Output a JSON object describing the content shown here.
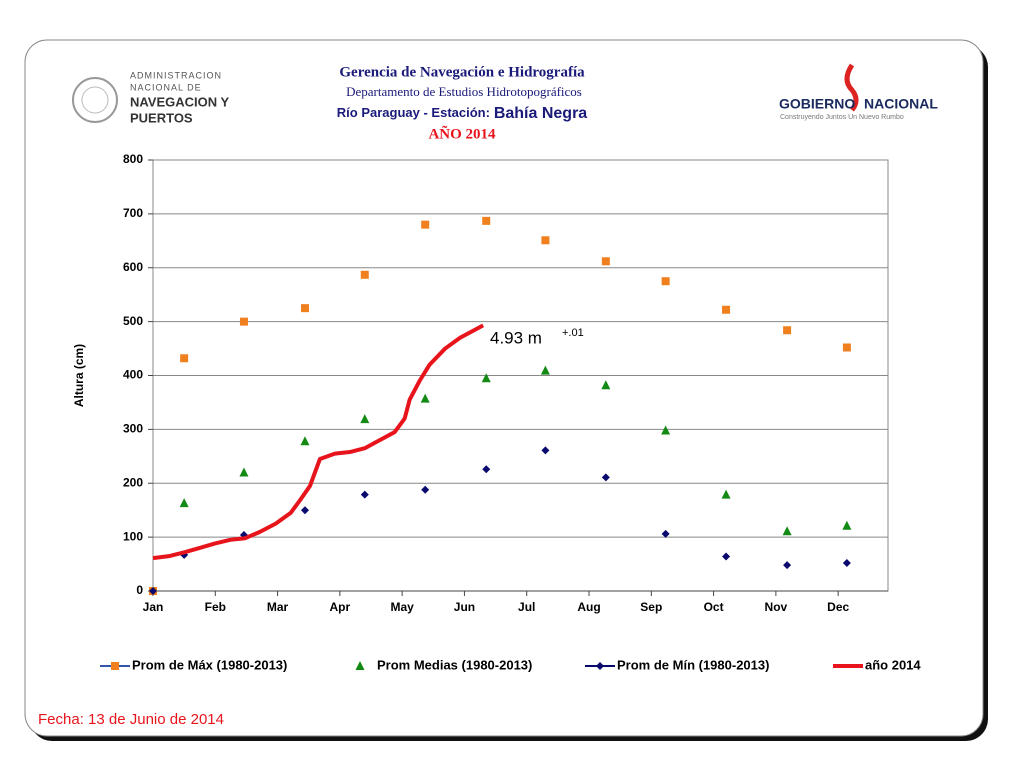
{
  "header": {
    "title": "Gerencia de Navegación e Hidrografía",
    "subtitle": "Departamento de Estudios Hidrotopográficos",
    "station_prefix": "Río Paraguay  -  Estación:",
    "station": "Bahía Negra",
    "year": "AÑO 2014"
  },
  "logos": {
    "left": [
      "ADMINISTRACION",
      "NACIONAL DE",
      "NAVEGACION Y",
      "PUERTOS"
    ],
    "right_a": "GOBIERNO",
    "right_b": "NACIONAL",
    "right_tagline": "Construyendo Juntos Un Nuevo Rumbo"
  },
  "footer": "Fecha:  13 de Junio de 2014",
  "chart_data": {
    "type": "line",
    "y_label": "Altura (cm)",
    "xlim": [
      0,
      11.8
    ],
    "xticks": [
      {
        "value": 0,
        "label": "Jan"
      },
      {
        "value": 1,
        "label": "Feb"
      },
      {
        "value": 2,
        "label": "Mar"
      },
      {
        "value": 3,
        "label": "Apr"
      },
      {
        "value": 4,
        "label": "May"
      },
      {
        "value": 5,
        "label": "Jun"
      },
      {
        "value": 6,
        "label": "Jul"
      },
      {
        "value": 7,
        "label": "Aug"
      },
      {
        "value": 8,
        "label": "Sep"
      },
      {
        "value": 9,
        "label": "Oct"
      },
      {
        "value": 10,
        "label": "Nov"
      },
      {
        "value": 11,
        "label": "Dec"
      }
    ],
    "ylim": [
      0,
      800
    ],
    "yticks": [
      0,
      100,
      200,
      300,
      400,
      500,
      600,
      700,
      800
    ],
    "grid": true,
    "series": [
      {
        "name": "Prom de Máx (1980-2013)",
        "color": "#f07f1e",
        "marker": "square",
        "x": [
          0,
          0.5,
          1.46,
          2.44,
          3.4,
          4.37,
          5.35,
          6.3,
          7.27,
          8.23,
          9.2,
          10.18,
          11.14
        ],
        "values": [
          0,
          432,
          500,
          525,
          587,
          680,
          687,
          651,
          612,
          575,
          522,
          484,
          452
        ]
      },
      {
        "name": "Prom Medias (1980-2013)",
        "color": "#138a13",
        "marker": "triangle",
        "x": [
          0.5,
          1.46,
          2.44,
          3.4,
          4.37,
          5.35,
          6.3,
          7.27,
          8.23,
          9.2,
          10.18,
          11.14
        ],
        "values": [
          163,
          220,
          278,
          319,
          357,
          395,
          409,
          382,
          298,
          179,
          111,
          121
        ]
      },
      {
        "name": "Prom de Mín   (1980-2013)",
        "color": "#0a0a6e",
        "marker": "diamond",
        "x": [
          0,
          0.5,
          1.46,
          2.44,
          3.4,
          4.37,
          5.35,
          6.3,
          7.27,
          8.23,
          9.2,
          10.18,
          11.14
        ],
        "values": [
          0,
          67,
          104,
          150,
          179,
          188,
          226,
          261,
          211,
          106,
          64,
          48,
          52
        ]
      },
      {
        "name": "año 2014",
        "color": "#e8141c",
        "marker": "none",
        "x": [
          0,
          0.27,
          0.51,
          0.75,
          0.99,
          1.24,
          1.48,
          1.72,
          1.97,
          2.21,
          2.37,
          2.52,
          2.68,
          2.92,
          3.16,
          3.4,
          3.64,
          3.88,
          4.04,
          4.12,
          4.28,
          4.44,
          4.69,
          4.93,
          5.17,
          5.3
        ],
        "values": [
          61,
          65,
          72,
          80,
          88,
          95,
          98,
          110,
          125,
          145,
          170,
          195,
          245,
          255,
          258,
          265,
          280,
          295,
          320,
          355,
          390,
          420,
          450,
          470,
          485,
          493
        ]
      }
    ],
    "annotation": "4.93 m",
    "annotation_sup": "+.01"
  }
}
